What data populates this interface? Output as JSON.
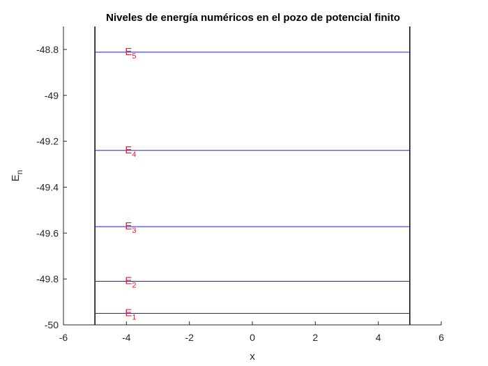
{
  "chart_data": {
    "type": "line",
    "title": "Niveles de energía numéricos en el pozo de potencial finito",
    "xlabel": "x",
    "ylabel": {
      "base": "E",
      "sub": "n"
    },
    "xlim": [
      -6,
      6
    ],
    "ylim": [
      -50,
      -48.7
    ],
    "xticks": [
      -6,
      -4,
      -2,
      0,
      2,
      4,
      6
    ],
    "xtick_labels": [
      "-6",
      "-4",
      "-2",
      "0",
      "2",
      "4",
      "6"
    ],
    "yticks": [
      -50,
      -49.8,
      -49.6,
      -49.4,
      -49.2,
      -49,
      -48.8
    ],
    "ytick_labels": [
      "-50",
      "-49.8",
      "-49.6",
      "-49.4",
      "-49.2",
      "-49",
      "-48.8"
    ],
    "grid": false,
    "well": {
      "x_left": -5,
      "x_right": 5,
      "color": "#000000"
    },
    "levels": [
      {
        "name": "E1",
        "label_base": "E",
        "label_sub": "1",
        "y": -49.95,
        "x": [
          -5,
          5
        ]
      },
      {
        "name": "E2",
        "label_base": "E",
        "label_sub": "2",
        "y": -49.81,
        "x": [
          -5,
          5
        ]
      },
      {
        "name": "E3",
        "label_base": "E",
        "label_sub": "3",
        "y": -49.572,
        "x": [
          -5,
          5
        ]
      },
      {
        "name": "E4",
        "label_base": "E",
        "label_sub": "4",
        "y": -49.24,
        "x": [
          -5,
          5
        ]
      },
      {
        "name": "E5",
        "label_base": "E",
        "label_sub": "5",
        "y": -48.812,
        "x": [
          -5,
          5
        ]
      }
    ],
    "label_x": -4,
    "colors": {
      "level_line": "#1f1fd6",
      "label": "#e8202a",
      "axis": "#262626"
    }
  }
}
